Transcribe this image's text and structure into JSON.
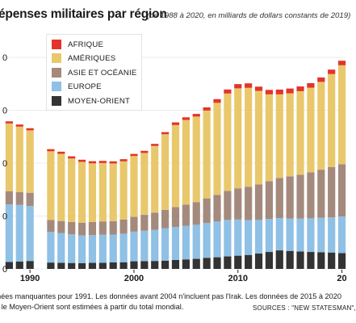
{
  "title": "épenses militaires par région",
  "subtitle": "(de 1988 à 2020, en milliards de dollars constants de 2019)",
  "footnote": {
    "line1": "nées manquantes pour 1991. Les données avant 2004 n'incluent pas l'Irak. Les données de 2015 à 2020",
    "line2": "r le Moyen-Orient sont estimées à partir du total mondial."
  },
  "sources": "SOURCES : \"NEW STATESMAN\",",
  "legend": [
    {
      "label": "AFRIQUE",
      "color": "#e3342b"
    },
    {
      "label": "AMÉRIQUES",
      "color": "#e9c86c"
    },
    {
      "label": "ASIE ET OCÉANIE",
      "color": "#a48a7d"
    },
    {
      "label": "EUROPE",
      "color": "#8fc0e6"
    },
    {
      "label": "MOYEN-ORIENT",
      "color": "#333333"
    }
  ],
  "chart_data": {
    "type": "bar",
    "stacked": true,
    "title": "épenses militaires par région",
    "xlabel": "",
    "ylabel": "",
    "x_tick_labels": [
      "1990",
      "2000",
      "2010",
      "20"
    ],
    "y_tick_labels": [
      "0",
      "0",
      "0",
      "0",
      "0"
    ],
    "ylim": [
      0,
      2000
    ],
    "grid": true,
    "legend_position": "top-left",
    "categories": [
      "1988",
      "1989",
      "1990",
      "1991",
      "1992",
      "1993",
      "1994",
      "1995",
      "1996",
      "1997",
      "1998",
      "1999",
      "2000",
      "2001",
      "2002",
      "2003",
      "2004",
      "2005",
      "2006",
      "2007",
      "2008",
      "2009",
      "2010",
      "2011",
      "2012",
      "2013",
      "2014",
      "2015",
      "2016",
      "2017",
      "2018",
      "2019",
      "2020"
    ],
    "series": [
      {
        "name": "MOYEN-ORIENT",
        "color": "#333333",
        "values": [
          65,
          70,
          75,
          null,
          60,
          58,
          56,
          55,
          57,
          58,
          62,
          63,
          72,
          73,
          75,
          78,
          85,
          90,
          95,
          105,
          110,
          118,
          125,
          132,
          145,
          160,
          175,
          170,
          165,
          160,
          158,
          155,
          150
        ]
      },
      {
        "name": "EUROPE",
        "color": "#8fc0e6",
        "values": [
          545,
          535,
          520,
          null,
          290,
          280,
          270,
          262,
          262,
          265,
          262,
          270,
          280,
          288,
          295,
          305,
          312,
          318,
          322,
          330,
          338,
          345,
          342,
          330,
          318,
          312,
          305,
          305,
          310,
          318,
          325,
          332,
          345
        ]
      },
      {
        "name": "ASIE ET OCÉANIE",
        "color": "#a48a7d",
        "values": [
          125,
          120,
          125,
          null,
          112,
          115,
          118,
          120,
          124,
          126,
          128,
          134,
          140,
          150,
          162,
          175,
          188,
          200,
          215,
          232,
          252,
          275,
          295,
          315,
          335,
          358,
          380,
          400,
          415,
          435,
          455,
          475,
          495
        ]
      },
      {
        "name": "AMÉRIQUES",
        "color": "#e9c86c",
        "values": [
          640,
          620,
          590,
          null,
          650,
          635,
          600,
          575,
          555,
          552,
          545,
          550,
          575,
          585,
          630,
          715,
          775,
          800,
          808,
          830,
          870,
          920,
          945,
          935,
          885,
          820,
          790,
          785,
          790,
          800,
          830,
          880,
          935
        ]
      },
      {
        "name": "AFRIQUE",
        "color": "#e3342b",
        "values": [
          20,
          20,
          20,
          null,
          20,
          20,
          20,
          20,
          20,
          20,
          20,
          20,
          20,
          20,
          20,
          20,
          25,
          25,
          25,
          30,
          35,
          38,
          40,
          42,
          40,
          42,
          45,
          45,
          45,
          43,
          42,
          42,
          43
        ]
      }
    ]
  }
}
